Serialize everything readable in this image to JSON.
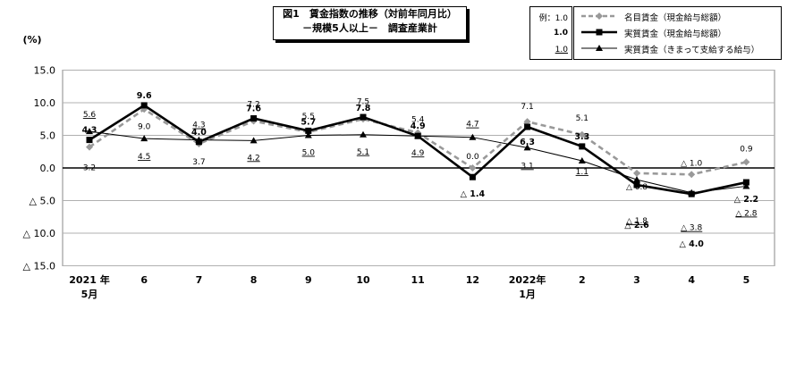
{
  "title": {
    "line1": "図1　賃金指数の推移（対前年同月比）",
    "line2": "－規模5人以上－　調査産業計"
  },
  "unit_label": "(%)",
  "example": {
    "label": "例：1.0",
    "bold": "1.0",
    "underline": "1.0"
  },
  "legend": [
    {
      "name": "名目賃金（現金給与総額）",
      "color": "#999999",
      "style": "dashed",
      "marker": "diamond"
    },
    {
      "name": "実質賃金（現金給与総額）",
      "color": "#000000",
      "style": "solid-thick",
      "marker": "square"
    },
    {
      "name": "実質賃金（きまって支給する給与）",
      "color": "#000000",
      "style": "solid-thin",
      "marker": "triangle"
    }
  ],
  "chart_data": {
    "type": "line",
    "categories": [
      "2021年 5月",
      "6",
      "7",
      "8",
      "9",
      "10",
      "11",
      "12",
      "2022年 1月",
      "2",
      "3",
      "4",
      "5"
    ],
    "x_tick_labels": [
      [
        "2021 年",
        "5月"
      ],
      [
        "6"
      ],
      [
        "7"
      ],
      [
        "8"
      ],
      [
        "9"
      ],
      [
        "10"
      ],
      [
        "11"
      ],
      [
        "12"
      ],
      [
        "2022年",
        "1月"
      ],
      [
        "2"
      ],
      [
        "3"
      ],
      [
        "4"
      ],
      [
        "5"
      ]
    ],
    "ylim": [
      -15,
      15
    ],
    "y_ticks": [
      15,
      10,
      5,
      0,
      -5,
      -10,
      -15
    ],
    "y_tick_labels": [
      "15.0",
      "10.0",
      "5.0",
      "0.0",
      "△ 5.0",
      "△ 10.0",
      "△ 15.0"
    ],
    "grid": true,
    "series": [
      {
        "name": "名目賃金（現金給与総額）",
        "values": [
          3.2,
          9.0,
          3.7,
          7.2,
          5.5,
          7.5,
          5.4,
          0.0,
          7.1,
          5.1,
          -0.8,
          -1.0,
          0.9
        ],
        "labels": [
          "3.2",
          "9.0",
          "3.7",
          "7.2",
          "5.5",
          "7.5",
          "5.4",
          "0.0",
          "7.1",
          "5.1",
          "△ 0.8",
          "△ 1.0",
          "0.9"
        ]
      },
      {
        "name": "実質賃金（現金給与総額）",
        "values": [
          4.3,
          9.6,
          4.0,
          7.6,
          5.7,
          7.8,
          4.9,
          -1.4,
          6.3,
          3.3,
          -2.6,
          -4.0,
          -2.2
        ],
        "labels": [
          "4.3",
          "9.6",
          "4.0",
          "7.6",
          "5.7",
          "7.8",
          "4.9",
          "△ 1.4",
          "6.3",
          "3.3",
          "△ 2.6",
          "△ 4.0",
          "△ 2.2"
        ]
      },
      {
        "name": "実質賃金（きまって支給する給与）",
        "values": [
          5.6,
          4.5,
          4.3,
          4.2,
          5.0,
          5.1,
          4.9,
          4.7,
          3.1,
          1.1,
          -1.8,
          -3.8,
          -2.8
        ],
        "labels": [
          "5.6",
          "4.5",
          "4.3",
          "4.2",
          "5.0",
          "5.1",
          "4.9",
          "4.7",
          "3.1",
          "1.1",
          "△ 1.8",
          "△ 3.8",
          "△ 2.8"
        ]
      }
    ]
  }
}
